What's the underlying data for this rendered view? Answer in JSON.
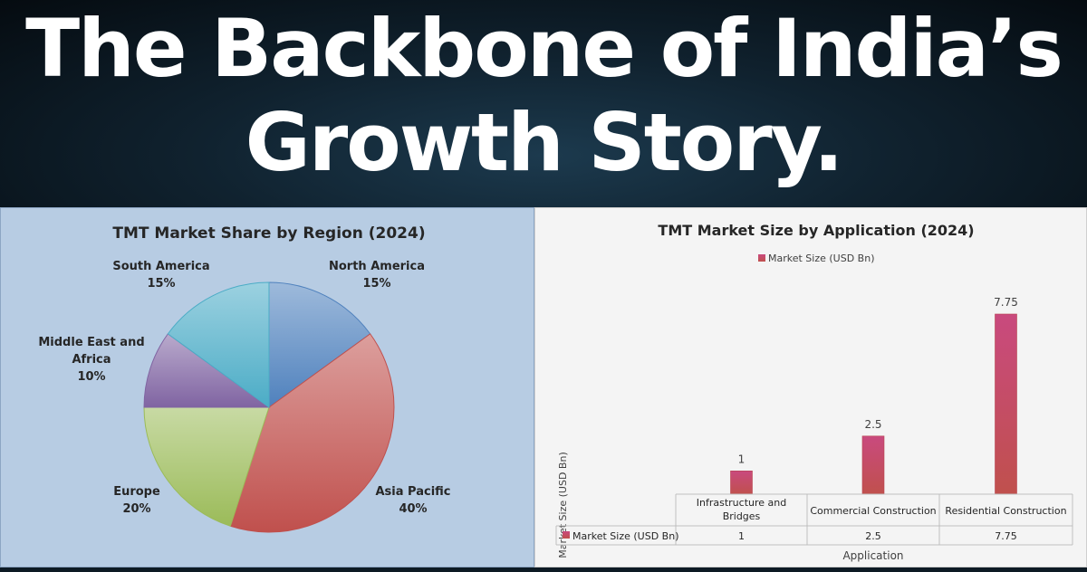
{
  "banner": {
    "line1": "The Backbone of India’s",
    "line2": "Growth Story."
  },
  "chart_data": [
    {
      "type": "pie",
      "title": "TMT Market Share by Region (2024)",
      "slices": [
        {
          "label": "North America",
          "value": 15,
          "pct_text": "15%",
          "color": "#4f81bd"
        },
        {
          "label": "Asia Pacific",
          "value": 40,
          "pct_text": "40%",
          "color": "#c0504d"
        },
        {
          "label": "Europe",
          "value": 20,
          "pct_text": "20%",
          "color": "#9bbb59"
        },
        {
          "label": "Middle East and Africa",
          "label_lines": [
            "Middle East and",
            "Africa"
          ],
          "value": 10,
          "pct_text": "10%",
          "color": "#8064a2"
        },
        {
          "label": "South America",
          "value": 15,
          "pct_text": "15%",
          "color": "#4bacc6"
        }
      ]
    },
    {
      "type": "bar",
      "title": "TMT Market Size by Application (2024)",
      "legend": "Market Size (USD Bn)",
      "xlabel": "Application",
      "ylabel": "Market Size (USD Bn)",
      "categories": [
        "Infrastructure and Bridges",
        "Commercial Construction",
        "Residential Construction"
      ],
      "category_lines": [
        [
          "Infrastructure and",
          "Bridges"
        ],
        [
          "Commercial Construction"
        ],
        [
          "Residential Construction"
        ]
      ],
      "series": [
        {
          "name": "Market Size (USD Bn)",
          "values": [
            1,
            2.5,
            7.75
          ],
          "value_labels": [
            "1",
            "2.5",
            "7.75"
          ],
          "color": "#c0504d"
        }
      ],
      "ylim": [
        0,
        7.75
      ]
    }
  ]
}
